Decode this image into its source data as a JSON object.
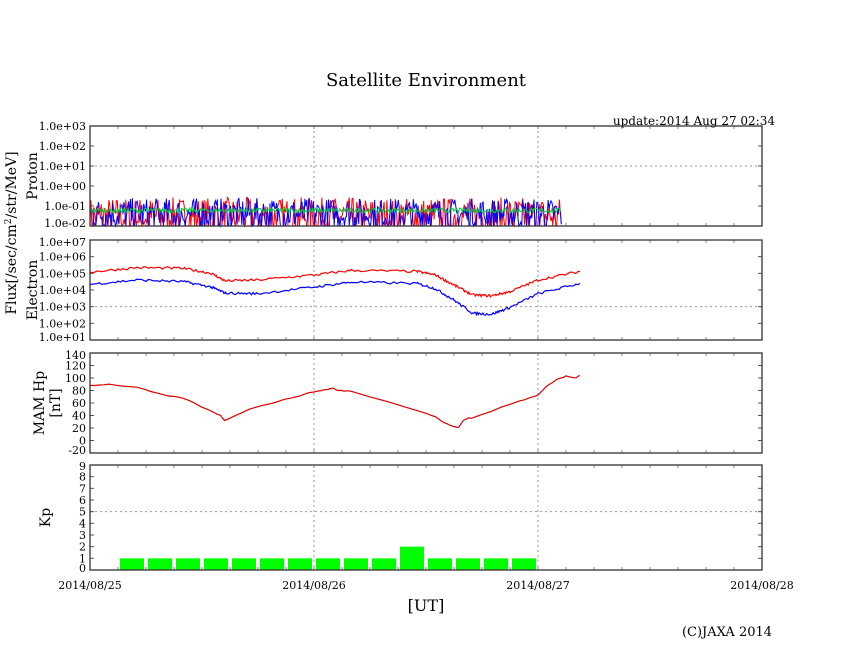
{
  "title": "Satellite Environment",
  "update": "update:2014 Aug 27 02:34",
  "copyright": "(C)JAXA 2014",
  "xlabel": "[UT]",
  "flux_label": "Flux[/sec/cm",
  "flux_label_sup": "2",
  "flux_label_tail": "/str/MeV]",
  "chart_data": [
    {
      "type": "line",
      "name": "Proton",
      "ylabel": "Proton",
      "yscale": "log",
      "ylim": [
        0.01,
        1000
      ],
      "yticks": [
        "1.0e-02",
        "1.0e-01",
        "1.0e+00",
        "1.0e+01",
        "1.0e+02",
        "1.0e+03"
      ],
      "grid_y": 10,
      "x_hours": [
        0,
        50.5
      ],
      "series": [
        {
          "name": "red",
          "color": "#ff0000",
          "base": 0.03,
          "noise": 0.6
        },
        {
          "name": "blue",
          "color": "#0000ff",
          "base": 0.04,
          "noise": 0.5
        },
        {
          "name": "green",
          "color": "#00cc33",
          "base": 0.06,
          "noise": 0.12
        }
      ]
    },
    {
      "type": "line",
      "name": "Electron",
      "ylabel": "Electron",
      "yscale": "log",
      "ylim": [
        10,
        10000000
      ],
      "yticks": [
        "1.0e+01",
        "1.0e+02",
        "1.0e+03",
        "1.0e+04",
        "1.0e+05",
        "1.0e+06",
        "1.0e+07"
      ],
      "grid_y": 1000,
      "series": [
        {
          "name": "red",
          "color": "#ff0000",
          "x": [
            0,
            5,
            10,
            13,
            14.5,
            18,
            24,
            28,
            35,
            37,
            39,
            41,
            43,
            45,
            48,
            52.5
          ],
          "y": [
            120000,
            220000,
            200000,
            100000,
            35000,
            40000,
            80000,
            150000,
            130000,
            80000,
            20000,
            5000,
            4500,
            8000,
            40000,
            130000
          ]
        },
        {
          "name": "blue",
          "color": "#0000ff",
          "x": [
            0,
            5,
            10,
            13,
            14.5,
            18,
            24,
            28,
            35,
            37,
            39,
            41,
            43,
            45,
            48,
            52.5
          ],
          "y": [
            22000,
            40000,
            32000,
            15000,
            6500,
            6000,
            15000,
            30000,
            25000,
            12000,
            2500,
            400,
            350,
            900,
            6000,
            25000
          ]
        }
      ]
    },
    {
      "type": "line",
      "name": "MAM Hp",
      "ylabel": "MAM Hp",
      "ylabel2": "[nT]",
      "ylim": [
        -20,
        140
      ],
      "yticks": [
        -20,
        0,
        20,
        40,
        60,
        80,
        100,
        120,
        140
      ],
      "series": [
        {
          "name": "Hp",
          "color": "#dd0000",
          "x": [
            0,
            2,
            5,
            8,
            10,
            12.5,
            14,
            14.4,
            17,
            20,
            22,
            24,
            25.5,
            26,
            26.5,
            28,
            36,
            37,
            38,
            39,
            39.5,
            40,
            40.5,
            41,
            45,
            47,
            48,
            48.5,
            49,
            50,
            51,
            52,
            52.5
          ],
          "y": [
            88,
            90,
            85,
            72,
            68,
            50,
            40,
            32,
            50,
            62,
            70,
            78,
            82,
            84,
            80,
            79,
            44,
            38,
            28,
            22,
            21,
            32,
            36,
            36,
            58,
            68,
            73,
            80,
            88,
            97,
            103,
            100,
            104
          ]
        }
      ]
    },
    {
      "type": "bar",
      "name": "Kp",
      "ylabel": "Kp",
      "ylim": [
        0,
        9
      ],
      "yticks": [
        0,
        1,
        2,
        3,
        4,
        5,
        6,
        7,
        8,
        9
      ],
      "grid_y": 5,
      "bar_width_hours": 3,
      "x_start_hours": [
        3,
        6,
        9,
        12,
        15,
        18,
        21,
        24,
        27,
        30,
        33,
        36,
        39,
        42,
        45
      ],
      "values": [
        1,
        1,
        1,
        1,
        1,
        1,
        1,
        1,
        1,
        1,
        2,
        1,
        1,
        1,
        1
      ],
      "color": "#00ff00"
    }
  ],
  "xticks": [
    "2014/08/25",
    "2014/08/26",
    "2014/08/27",
    "2014/08/28"
  ],
  "xlim_hours": [
    0,
    72
  ]
}
